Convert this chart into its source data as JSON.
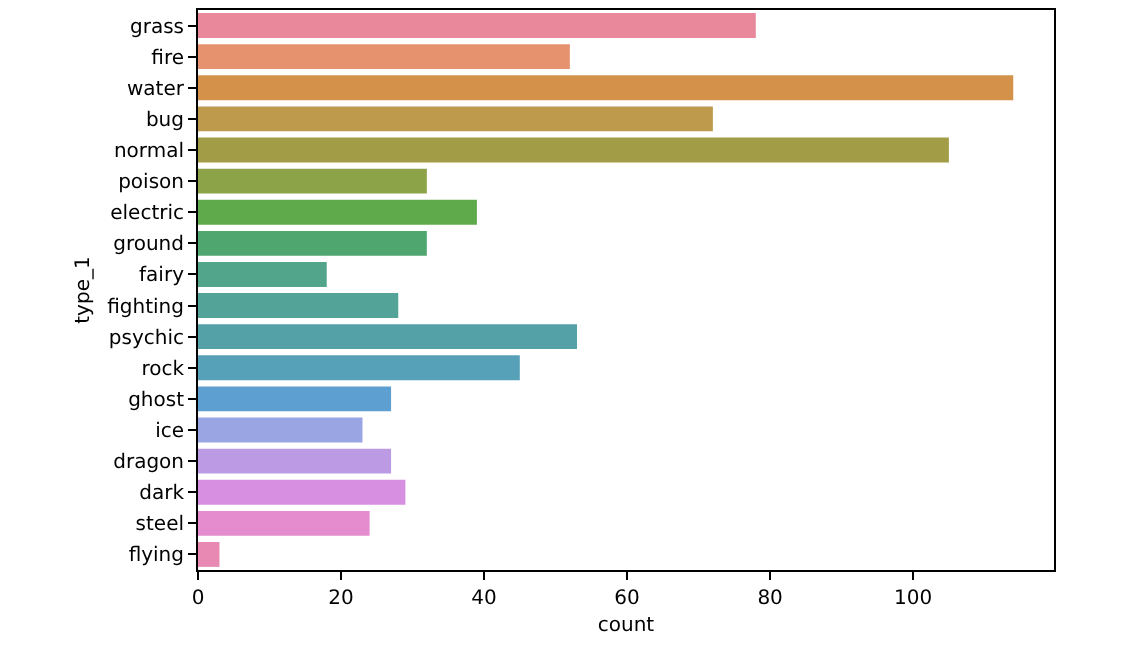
{
  "chart_data": {
    "type": "bar",
    "orientation": "horizontal",
    "xlabel": "count",
    "ylabel": "type_1",
    "categories": [
      "grass",
      "fire",
      "water",
      "bug",
      "normal",
      "poison",
      "electric",
      "ground",
      "fairy",
      "fighting",
      "psychic",
      "rock",
      "ghost",
      "ice",
      "dragon",
      "dark",
      "steel",
      "flying"
    ],
    "values": [
      78,
      52,
      114,
      72,
      105,
      32,
      39,
      32,
      18,
      28,
      53,
      45,
      27,
      23,
      27,
      29,
      24,
      3
    ],
    "colors": [
      "#e8889a",
      "#e6926f",
      "#d3914a",
      "#be9a4d",
      "#a39c46",
      "#8ca348",
      "#5faa4b",
      "#4fa76f",
      "#52a58a",
      "#53a399",
      "#54a2a8",
      "#56a1b8",
      "#5c9fd0",
      "#9aa6e3",
      "#bc9ae4",
      "#d68fe1",
      "#e58cce",
      "#e889b4"
    ],
    "xlim": [
      0,
      119.7
    ],
    "xticks": [
      0,
      20,
      40,
      60,
      80,
      100
    ],
    "grid": false
  }
}
